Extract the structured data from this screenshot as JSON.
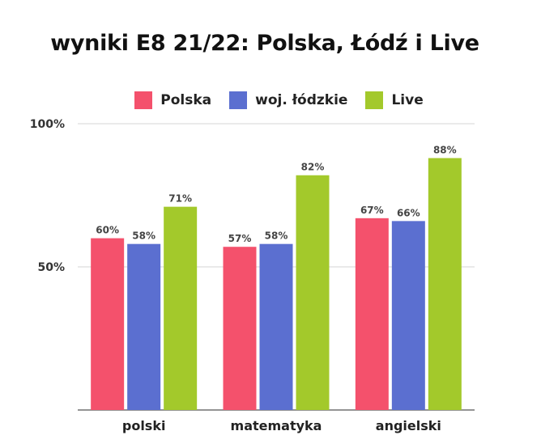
{
  "chart_data": {
    "type": "bar",
    "title": "wyniki E8 21/22: Polska, Łódź i Live",
    "categories": [
      "polski",
      "matematyka",
      "angielski"
    ],
    "series": [
      {
        "name": "Polska",
        "color": "#f4516c",
        "values": [
          60,
          57,
          67
        ],
        "labels": [
          "60%",
          "57%",
          "67%"
        ]
      },
      {
        "name": "woj. łódzkie",
        "color": "#5b6fd0",
        "values": [
          58,
          58,
          66
        ],
        "labels": [
          "58%",
          "58%",
          "66%"
        ]
      },
      {
        "name": "Live",
        "color": "#a3c92b",
        "values": [
          71,
          82,
          88
        ],
        "labels": [
          "71%",
          "82%",
          "88%"
        ]
      }
    ],
    "y_ticks": [
      {
        "value": 50,
        "label": "50%"
      },
      {
        "value": 100,
        "label": "100%"
      }
    ],
    "ylim": [
      0,
      100
    ],
    "grid": true,
    "legend_position": "top"
  }
}
